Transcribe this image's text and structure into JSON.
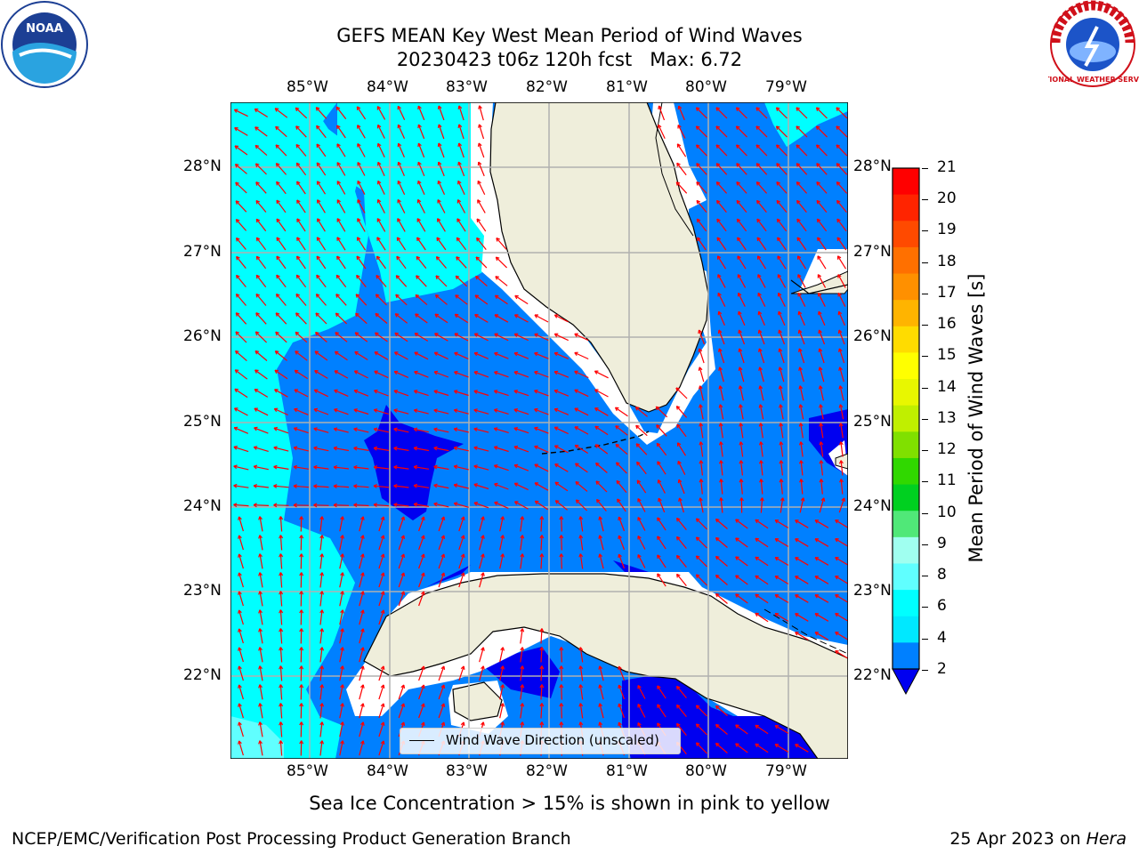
{
  "title_line1": "GEFS MEAN Key West Mean Period of Wind Waves",
  "title_line2": "20230423 t06z 120h fcst   Max: 6.72",
  "lon_labels": [
    "85°W",
    "84°W",
    "83°W",
    "82°W",
    "81°W",
    "80°W",
    "79°W"
  ],
  "lat_labels": [
    "28°N",
    "27°N",
    "26°N",
    "25°N",
    "24°N",
    "23°N",
    "22°N"
  ],
  "legend_label": "Wind Wave Direction (unscaled)",
  "colorbar": {
    "label": "Mean Period of Wind Waves [s]",
    "ticks": [
      "21",
      "20",
      "19",
      "18",
      "17",
      "16",
      "15",
      "14",
      "13",
      "12",
      "11",
      "10",
      "9",
      "8",
      "6",
      "4",
      "2"
    ],
    "colors": [
      "#ff0000",
      "#ff2400",
      "#ff4a00",
      "#ff7000",
      "#ff9000",
      "#ffb400",
      "#ffdc00",
      "#ffff00",
      "#e8f700",
      "#c0ef00",
      "#80e000",
      "#30d800",
      "#00d020",
      "#50e878",
      "#a0fff0",
      "#60ffff",
      "#00ffff",
      "#00e8ff",
      "#0080ff"
    ],
    "underflow_color": "#0000f0"
  },
  "footer_left": "NCEP/EMC/Verification Post Processing Product Generation Branch",
  "footer_date": "25 Apr 2023 on ",
  "footer_host": "Hera",
  "caption": "Sea Ice Concentration > 15% is shown in pink to yellow",
  "colors": {
    "land": "#efeedb",
    "cyan": "#00ffff",
    "mid_blue": "#0080ff",
    "dark_blue": "#0000f0",
    "arrow": "#ff0000",
    "grid": "#b0b0b0"
  },
  "logos": {
    "left": "NOAA",
    "right": "NATIONAL WEATHER SERVICE"
  }
}
